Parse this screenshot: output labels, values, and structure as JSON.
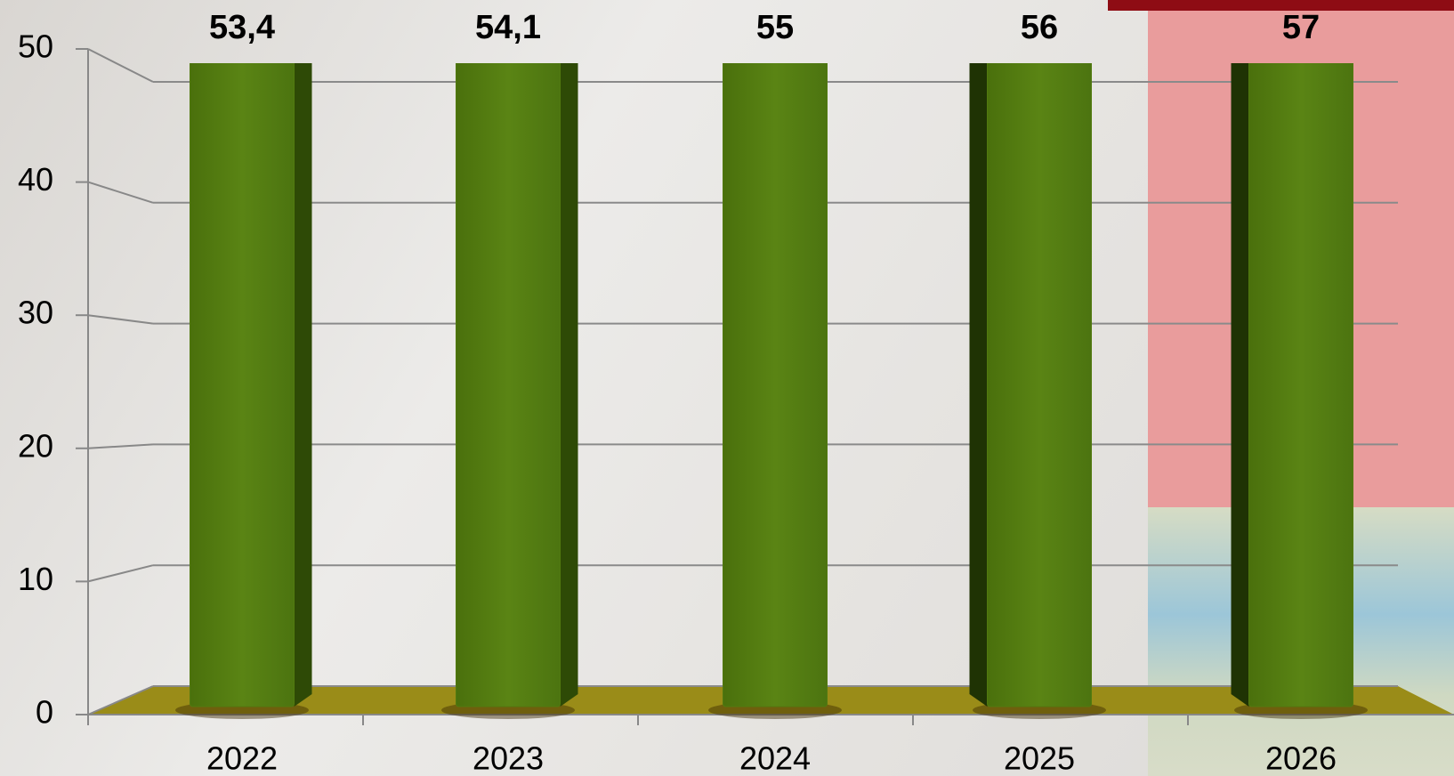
{
  "chart_data": {
    "type": "bar",
    "categories": [
      "2022",
      "2023",
      "2024",
      "2025",
      "2026"
    ],
    "values": [
      53.4,
      54.1,
      55,
      56,
      57
    ],
    "value_labels": [
      "53,4",
      "54,1",
      "55",
      "56",
      "57"
    ],
    "color": "#527a10",
    "ylim": [
      0,
      50
    ],
    "yticks": [
      0,
      10,
      20,
      30,
      40,
      50
    ],
    "grid": true
  }
}
